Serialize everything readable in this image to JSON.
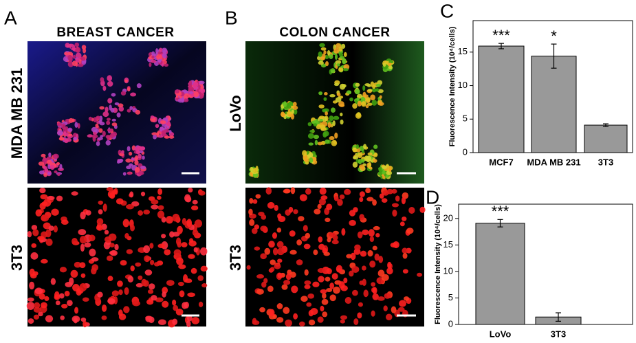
{
  "panels": [
    {
      "letter": "A",
      "title": "BREAST CANCER",
      "rows": [
        "MDA MB 231",
        "3T3"
      ]
    },
    {
      "letter": "B",
      "title": "COLON CANCER",
      "rows": [
        "LoVo",
        "3T3"
      ]
    }
  ],
  "chart_data": [
    {
      "type": "bar",
      "panel_label": "C",
      "ylabel": "Fluorescence Intensity (10⁴/cells)",
      "categories": [
        "MCF7",
        "MDA MB 231",
        "3T3"
      ],
      "values": [
        15.9,
        14.4,
        4.1
      ],
      "errors": [
        0.4,
        1.8,
        0.2
      ],
      "annotations": [
        "***",
        "*",
        null
      ],
      "color": "#999999",
      "ylim": [
        0,
        19.7
      ],
      "yticks": [
        0,
        5,
        10,
        15
      ]
    },
    {
      "type": "bar",
      "panel_label": "D",
      "ylabel": "Fluorescence Intensity (10⁴/cells)",
      "categories": [
        "LoVo",
        "3T3"
      ],
      "values": [
        19.1,
        1.4
      ],
      "errors": [
        0.7,
        0.8
      ],
      "annotations": [
        "***",
        null
      ],
      "color": "#999999",
      "ylim": [
        0,
        22.7
      ],
      "yticks": [
        0,
        5,
        10,
        15,
        20
      ]
    }
  ]
}
